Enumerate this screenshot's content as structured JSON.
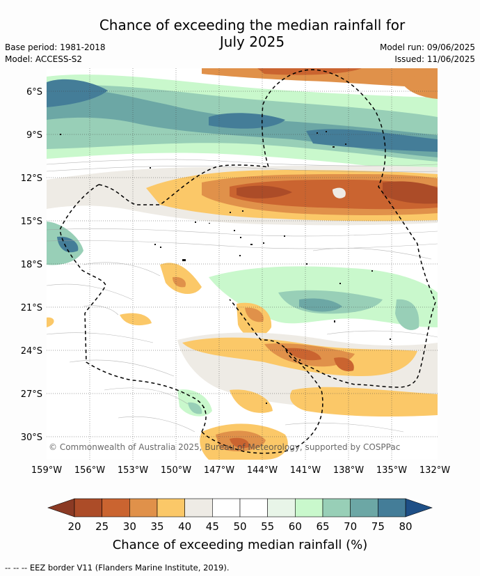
{
  "title_line1": "Chance of exceeding the median rainfall for",
  "title_line2": "July 2025",
  "meta_left": {
    "base_period": "Base period: 1981-2018",
    "model": "Model: ACCESS-S2"
  },
  "meta_right": {
    "model_run": "Model run: 09/06/2025",
    "issued": "Issued: 11/06/2025"
  },
  "map": {
    "lat_labels": [
      "6°S",
      "9°S",
      "12°S",
      "15°S",
      "18°S",
      "21°S",
      "24°S",
      "27°S",
      "30°S"
    ],
    "lon_labels": [
      "159°W",
      "156°W",
      "153°W",
      "150°W",
      "147°W",
      "144°W",
      "141°W",
      "138°W",
      "135°W",
      "132°W"
    ],
    "watermark": "© Commonwealth of Australia 2025, Bureau of Meteorology, supported by COSPPac"
  },
  "colorbar": {
    "ticks": [
      "20",
      "25",
      "30",
      "35",
      "40",
      "45",
      "50",
      "55",
      "60",
      "65",
      "70",
      "75",
      "80"
    ],
    "colors": [
      "#ac4c28",
      "#ca6430",
      "#e0914a",
      "#fbc868",
      "#eeebe5",
      "#ffffff",
      "#ffffff",
      "#e8f5e8",
      "#c9f8cc",
      "#98cfb7",
      "#6ca7a5",
      "#447d98"
    ],
    "low_color": "#8b3a24",
    "high_color": "#1e4f86",
    "label": "Chance of exceeding median rainfall (%)"
  },
  "legend_note": "--  --  -- EEZ border V11 (Flanders Marine Institute, 2019)."
}
